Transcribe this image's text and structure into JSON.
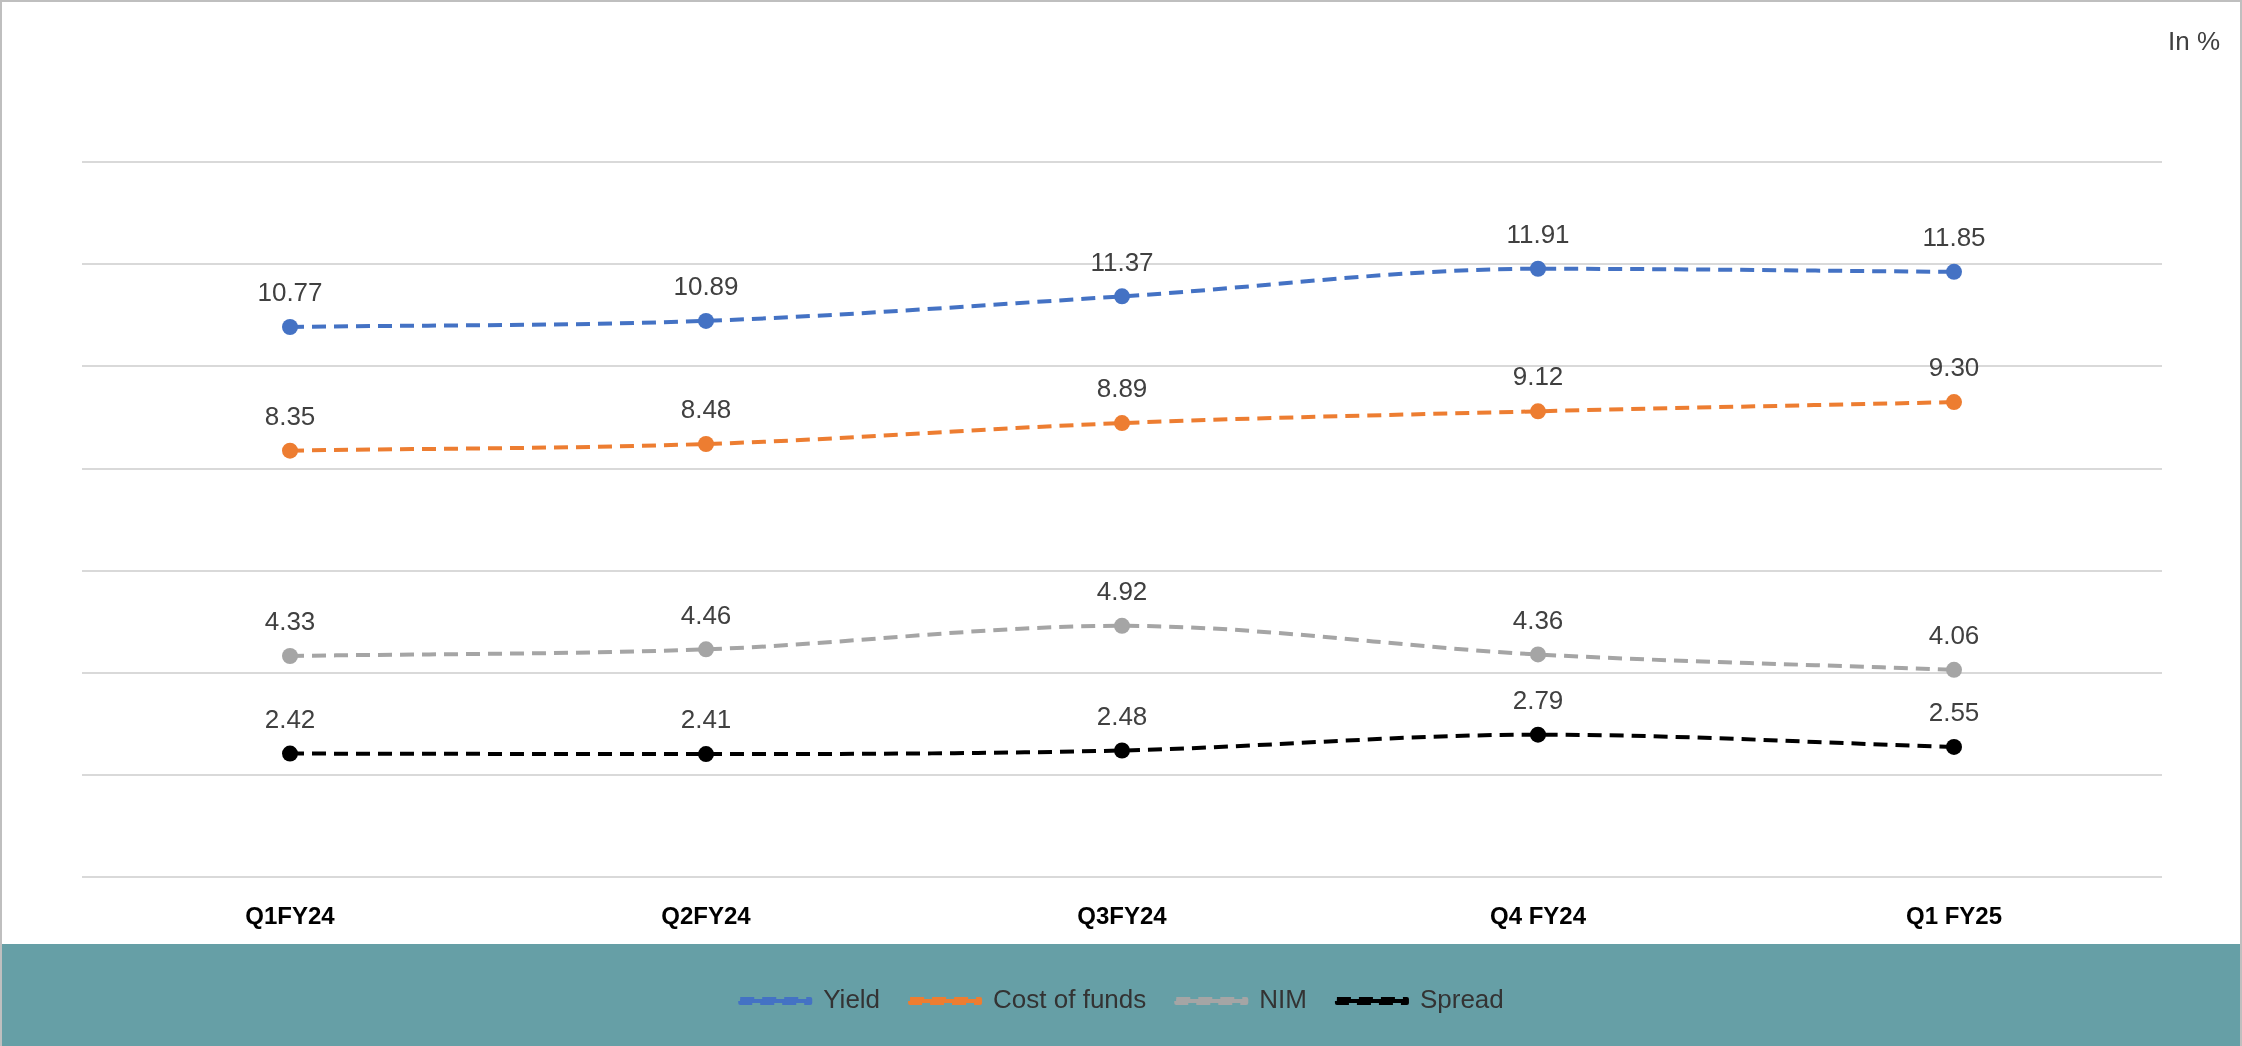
{
  "chart_data": {
    "type": "line",
    "annotations": [
      "In %"
    ],
    "categories": [
      "Q1FY24",
      "Q2FY24",
      "Q3FY24",
      "Q4 FY24",
      "Q1 FY25"
    ],
    "series": [
      {
        "name": "Yield",
        "color": "#4472c4",
        "values": [
          10.77,
          10.89,
          11.37,
          11.91,
          11.85
        ],
        "value_labels": [
          "10.77",
          "10.89",
          "11.37",
          "11.91",
          "11.85"
        ]
      },
      {
        "name": "Cost of funds",
        "color": "#ed7d31",
        "values": [
          8.35,
          8.48,
          8.89,
          9.12,
          9.3
        ],
        "value_labels": [
          "8.35",
          "8.48",
          "8.89",
          "9.12",
          "9.30"
        ]
      },
      {
        "name": "NIM",
        "color": "#a5a5a5",
        "values": [
          4.33,
          4.46,
          4.92,
          4.36,
          4.06
        ],
        "value_labels": [
          "4.33",
          "4.46",
          "4.92",
          "4.36",
          "4.06"
        ]
      },
      {
        "name": "Spread",
        "color": "#000000",
        "values": [
          2.42,
          2.41,
          2.48,
          2.79,
          2.55
        ],
        "value_labels": [
          "2.42",
          "2.41",
          "2.48",
          "2.79",
          "2.55"
        ]
      }
    ],
    "ylim": [
      0,
      14
    ],
    "yticks": [
      {
        "value": 0,
        "label": null
      },
      {
        "value": 2,
        "label": null
      },
      {
        "value": 4,
        "label": null
      },
      {
        "value": 6,
        "label": null
      },
      {
        "value": 8,
        "label": null
      },
      {
        "value": 10,
        "label": null
      },
      {
        "value": 12,
        "label": null
      },
      {
        "value": 14,
        "label": null
      }
    ],
    "tick_labels": "x",
    "grid": "y",
    "legend": "bottom",
    "marker": "circle",
    "line_style": "dashed"
  }
}
